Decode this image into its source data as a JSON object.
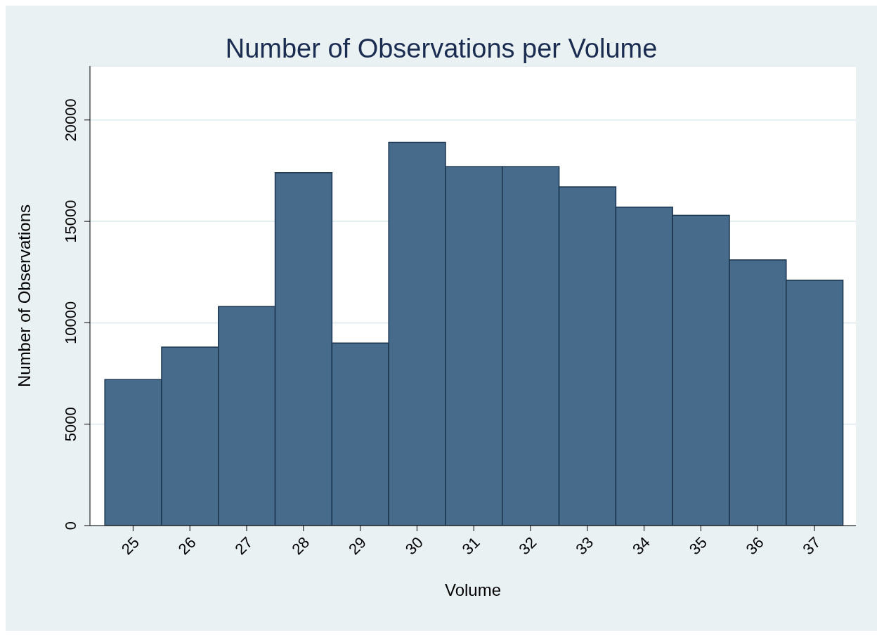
{
  "chart_data": {
    "type": "histogram",
    "title": "Number of Observations per Volume",
    "xlabel": "Volume",
    "ylabel": "Number of Observations",
    "bins": [
      24.5,
      25.5,
      26.5,
      27.5,
      28.5,
      29.5,
      30.5,
      31.5,
      32.5,
      33.5,
      34.5,
      35.5,
      36.5,
      37.5
    ],
    "values": [
      7200,
      8800,
      10800,
      17400,
      9000,
      18900,
      17700,
      17700,
      16700,
      15700,
      15300,
      13100,
      12100
    ],
    "color": "#476b8b",
    "xlim": [
      24.24,
      37.73
    ],
    "xticks": [
      25,
      26,
      27,
      28,
      29,
      30,
      31,
      32,
      33,
      34,
      35,
      36,
      37
    ],
    "ylim": [
      0,
      22660
    ],
    "yticks": [
      0,
      5000,
      10000,
      15000,
      20000
    ],
    "grid": "y"
  }
}
